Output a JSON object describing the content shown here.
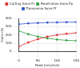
{
  "chart_data": {
    "type": "line",
    "x_label": "Feed (mm/min)",
    "y_label": "Force (N)",
    "x": [
      0,
      25,
      50,
      75,
      100,
      125,
      150
    ],
    "series": [
      {
        "name": "Cutting force Fc",
        "color": "#e03030",
        "values": [
          60,
          110,
          150,
          180,
          200,
          215,
          225
        ],
        "marker": "circle"
      },
      {
        "name": "Penetration force Fp",
        "color": "#30a040",
        "values": [
          250,
          210,
          180,
          160,
          145,
          135,
          130
        ],
        "marker": "circle"
      },
      {
        "name": "Transverse force Ff",
        "color": "#3050d0",
        "values": [
          330,
          340,
          345,
          350,
          352,
          355,
          356
        ],
        "marker": "circle"
      }
    ],
    "xlim": [
      0,
      150
    ],
    "xticks": [
      0,
      50,
      100,
      150
    ],
    "ylim": [
      0,
      400
    ],
    "yticks": [
      0,
      100,
      200,
      300,
      400
    ],
    "grid": true,
    "legend": "top"
  }
}
